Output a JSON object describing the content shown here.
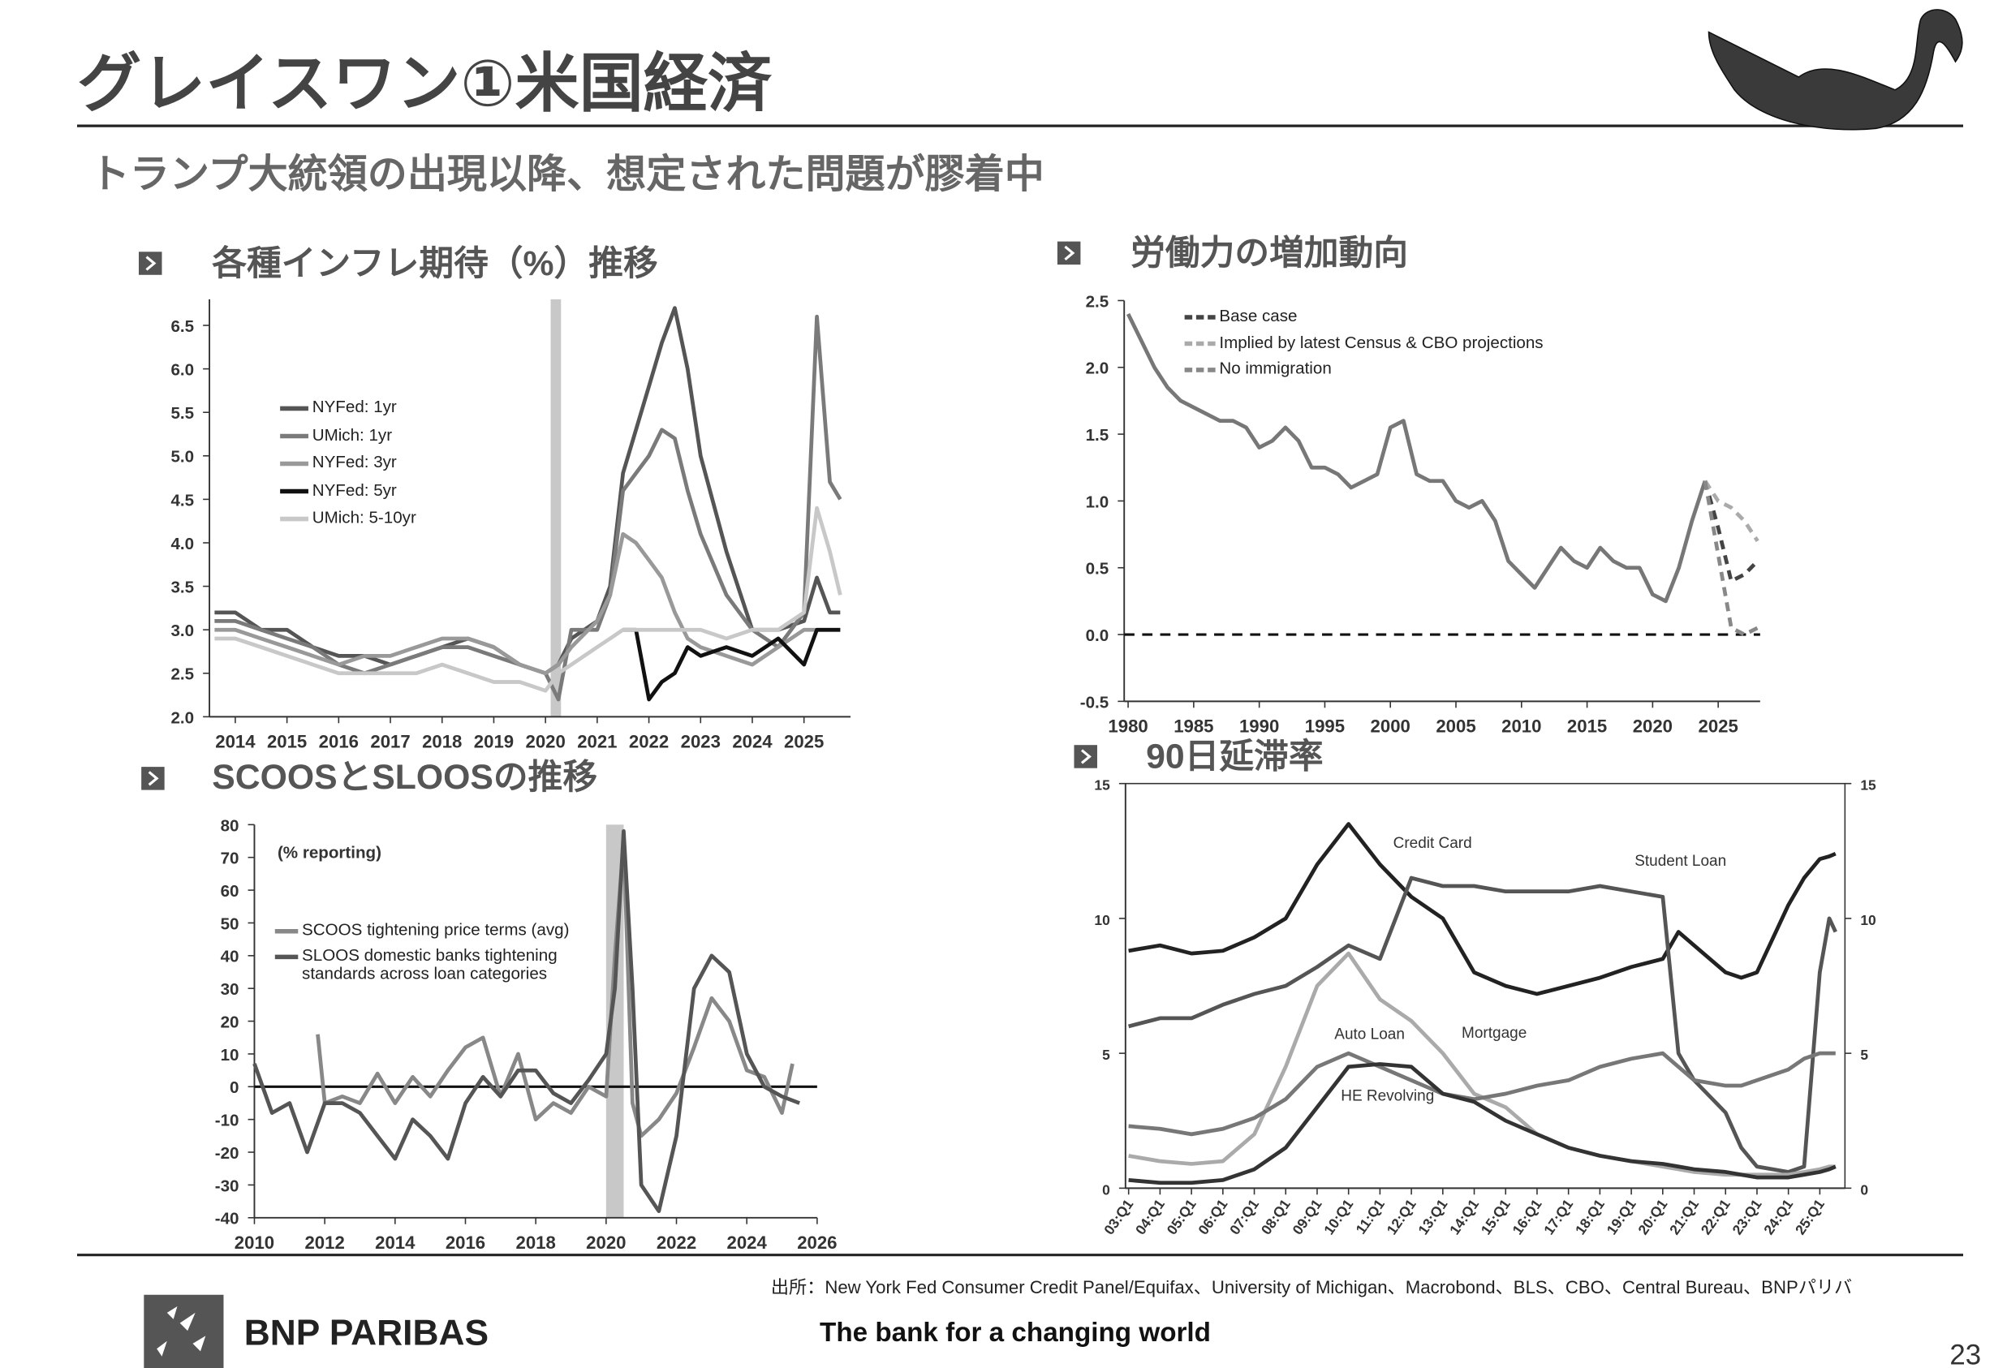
{
  "page_title": "グレイスワン①米国経済",
  "subtitle": "トランプ大統領の出現以降、想定された問題が膠着中",
  "source": "出所：New York Fed Consumer Credit Panel/Equifax、University of Michigan、Macrobond、BLS、CBO、Central Bureau、BNPパリバ",
  "logo": "BNP PARIBAS",
  "tagline": "The bank for a changing world",
  "page_number": "23",
  "chart_data": [
    {
      "type": "line",
      "title": "各種インフレ期待（%）推移",
      "legend": "upper left",
      "xlim": [
        2013.5,
        2025.9
      ],
      "xticks": [
        2014,
        2015,
        2016,
        2017,
        2018,
        2019,
        2020,
        2021,
        2022,
        2023,
        2024,
        2025
      ],
      "ylim": [
        2,
        6.8
      ],
      "yticks": [
        {
          "value": 2,
          "label": "2.0"
        },
        2.5,
        {
          "value": 3,
          "label": "3.0"
        },
        3.5,
        {
          "value": 4,
          "label": "4.0"
        },
        4.5,
        {
          "value": 5,
          "label": "5.0"
        },
        5.5,
        {
          "value": 6,
          "label": "6.0"
        },
        6.5
      ],
      "shade_x": [
        2020.1,
        2020.3
      ],
      "x": [
        2013.6,
        2014,
        2014.5,
        2015,
        2015.5,
        2016,
        2016.5,
        2017,
        2017.5,
        2018,
        2018.5,
        2019,
        2019.5,
        2020,
        2020.25,
        2020.5,
        2021,
        2021.25,
        2021.5,
        2021.75,
        2022,
        2022.25,
        2022.5,
        2022.75,
        2023,
        2023.5,
        2024,
        2024.5,
        2025,
        2025.25,
        2025.5,
        2025.7
      ],
      "series": [
        {
          "name": "NYFed: 1yr",
          "color": "#555555",
          "values": [
            3.2,
            3.2,
            3.0,
            3.0,
            2.8,
            2.7,
            2.7,
            2.6,
            2.7,
            2.8,
            2.9,
            2.8,
            2.6,
            2.5,
            2.6,
            2.9,
            3.1,
            3.5,
            4.8,
            5.3,
            5.8,
            6.3,
            6.7,
            6.0,
            5.0,
            3.9,
            3.0,
            3.0,
            3.1,
            3.6,
            3.2,
            3.2
          ]
        },
        {
          "name": "UMich: 1yr",
          "color": "#7a7a7a",
          "values": [
            3.1,
            3.1,
            3.0,
            2.9,
            2.8,
            2.6,
            2.5,
            2.6,
            2.7,
            2.8,
            2.8,
            2.7,
            2.6,
            2.5,
            2.2,
            3.0,
            3.0,
            3.4,
            4.6,
            4.8,
            5.0,
            5.3,
            5.2,
            4.6,
            4.1,
            3.4,
            3.0,
            2.8,
            3.2,
            6.6,
            4.7,
            4.5
          ]
        },
        {
          "name": "NYFed: 3yr",
          "color": "#999999",
          "values": [
            3.0,
            3.0,
            2.9,
            2.8,
            2.7,
            2.6,
            2.7,
            2.7,
            2.8,
            2.9,
            2.9,
            2.8,
            2.6,
            2.5,
            2.6,
            2.8,
            3.1,
            3.4,
            4.1,
            4.0,
            3.8,
            3.6,
            3.2,
            2.9,
            2.8,
            2.7,
            2.6,
            2.8,
            3.0,
            3.0,
            3.0,
            3.0
          ]
        },
        {
          "name": "NYFed: 5yr",
          "color": "#111111",
          "values": [
            null,
            null,
            null,
            null,
            null,
            null,
            null,
            null,
            null,
            null,
            null,
            null,
            null,
            null,
            null,
            null,
            null,
            null,
            3.0,
            3.0,
            2.2,
            2.4,
            2.5,
            2.8,
            2.7,
            2.8,
            2.7,
            2.9,
            2.6,
            3.0,
            3.0,
            3.0
          ]
        },
        {
          "name": "UMich: 5-10yr",
          "color": "#c8c8c8",
          "values": [
            2.9,
            2.9,
            2.8,
            2.7,
            2.6,
            2.5,
            2.5,
            2.5,
            2.5,
            2.6,
            2.5,
            2.4,
            2.4,
            2.3,
            2.5,
            2.6,
            2.8,
            2.9,
            3.0,
            3.0,
            3.0,
            3.0,
            3.0,
            3.0,
            3.0,
            2.9,
            3.0,
            3.0,
            3.2,
            4.4,
            3.9,
            3.4
          ]
        }
      ]
    },
    {
      "type": "line",
      "title": "労働力の増加動向",
      "legend": "upper left",
      "xlim": [
        1979.7,
        2028.2
      ],
      "xticks": [
        1980,
        1985,
        1990,
        1995,
        2000,
        2005,
        2010,
        2015,
        2020,
        2025
      ],
      "ylim": [
        -0.5,
        2.5
      ],
      "yticks": [
        -0.5,
        {
          "value": 0,
          "label": "0.0"
        },
        0.5,
        {
          "value": 1,
          "label": "1.0"
        },
        1.5,
        {
          "value": 2,
          "label": "2.0"
        },
        2.5
      ],
      "hline": 0,
      "hline_style": "dashed",
      "x": [
        1980,
        1981,
        1982,
        1983,
        1984,
        1985,
        1986,
        1987,
        1988,
        1989,
        1990,
        1991,
        1992,
        1993,
        1994,
        1995,
        1996,
        1997,
        1998,
        1999,
        2000,
        2001,
        2002,
        2003,
        2004,
        2005,
        2006,
        2007,
        2008,
        2009,
        2010,
        2011,
        2012,
        2013,
        2014,
        2015,
        2016,
        2017,
        2018,
        2019,
        2020,
        2021,
        2022,
        2023,
        2024
      ],
      "series": [
        {
          "color": "#777777",
          "values": [
            2.4,
            2.2,
            2.0,
            1.85,
            1.75,
            1.7,
            1.65,
            1.6,
            1.6,
            1.55,
            1.4,
            1.45,
            1.55,
            1.45,
            1.25,
            1.25,
            1.2,
            1.1,
            1.15,
            1.2,
            1.55,
            1.6,
            1.2,
            1.15,
            1.15,
            1.0,
            0.95,
            1.0,
            0.85,
            0.55,
            0.45,
            0.35,
            0.5,
            0.65,
            0.55,
            0.5,
            0.65,
            0.55,
            0.5,
            0.5,
            0.3,
            0.25,
            0.5,
            0.85,
            1.15
          ]
        },
        {
          "name": "Base case",
          "color": "#444444",
          "style": "dashed",
          "x": [
            2024,
            2025,
            2026,
            2027,
            2028
          ],
          "values": [
            1.15,
            0.8,
            0.4,
            0.45,
            0.55
          ]
        },
        {
          "name": "Implied by latest Census & CBO projections",
          "color": "#aaaaaa",
          "style": "dashed",
          "x": [
            2024,
            2025,
            2026,
            2027,
            2028
          ],
          "values": [
            1.15,
            1.0,
            0.95,
            0.85,
            0.7
          ]
        },
        {
          "name": "No immigration",
          "color": "#888888",
          "style": "dashed",
          "x": [
            2024,
            2025,
            2026,
            2027,
            2028
          ],
          "values": [
            1.15,
            0.6,
            0.05,
            0.0,
            0.05
          ]
        }
      ]
    },
    {
      "type": "line",
      "title": "SCOOSとSLOOSの推移",
      "legend": "center left",
      "annotation": "(% reporting)",
      "xlim": [
        2010,
        2026
      ],
      "xticks": [
        2010,
        2012,
        2014,
        2016,
        2018,
        2020,
        2022,
        2024,
        2026
      ],
      "ylim": [
        -40,
        80
      ],
      "yticks": [
        -40,
        -30,
        -20,
        -10,
        0,
        10,
        20,
        30,
        40,
        50,
        60,
        70,
        80
      ],
      "hline": 0,
      "hline_style": "solid",
      "shade_x": [
        2020,
        2020.5
      ],
      "series": [
        {
          "name": "SCOOS tightening price terms (avg)",
          "color": "#888888",
          "x": [
            2011.8,
            2012,
            2012.5,
            2013,
            2013.5,
            2014,
            2014.5,
            2015,
            2015.5,
            2016,
            2016.5,
            2017,
            2017.5,
            2018,
            2018.5,
            2019,
            2019.5,
            2020,
            2020.25,
            2020.5,
            2020.75,
            2021,
            2021.5,
            2022,
            2022.5,
            2023,
            2023.5,
            2024,
            2024.5,
            2025,
            2025.3
          ],
          "values": [
            16,
            -5,
            -3,
            -5,
            4,
            -5,
            3,
            -3,
            5,
            12,
            15,
            -3,
            10,
            -10,
            -5,
            -8,
            0,
            -3,
            40,
            75,
            -5,
            -15,
            -10,
            -2,
            12,
            27,
            20,
            5,
            3,
            -8,
            7
          ]
        },
        {
          "name": "SLOOS domestic banks tightening standards across loan categories",
          "color": "#555555",
          "x": [
            2010,
            2010.5,
            2011,
            2011.5,
            2012,
            2012.5,
            2013,
            2013.5,
            2014,
            2014.5,
            2015,
            2015.5,
            2016,
            2016.5,
            2017,
            2017.5,
            2018,
            2018.5,
            2019,
            2019.5,
            2020,
            2020.25,
            2020.5,
            2020.75,
            2021,
            2021.5,
            2022,
            2022.5,
            2023,
            2023.5,
            2024,
            2024.5,
            2025,
            2025.5
          ],
          "values": [
            7,
            -8,
            -5,
            -20,
            -5,
            -5,
            -8,
            -15,
            -22,
            -10,
            -15,
            -22,
            -5,
            3,
            -3,
            5,
            5,
            -2,
            -5,
            2,
            10,
            30,
            78,
            30,
            -30,
            -38,
            -15,
            30,
            40,
            35,
            10,
            0,
            -3,
            -5
          ]
        }
      ]
    },
    {
      "type": "line",
      "title": "90日延滞率",
      "legend": "inline",
      "xlim": [
        2002.9,
        2025.8
      ],
      "xticks": [
        {
          "value": 2003,
          "label": "03:Q1"
        },
        {
          "value": 2004,
          "label": "04:Q1"
        },
        {
          "value": 2005,
          "label": "05:Q1"
        },
        {
          "value": 2006,
          "label": "06:Q1"
        },
        {
          "value": 2007,
          "label": "07:Q1"
        },
        {
          "value": 2008,
          "label": "08:Q1"
        },
        {
          "value": 2009,
          "label": "09:Q1"
        },
        {
          "value": 2010,
          "label": "10:Q1"
        },
        {
          "value": 2011,
          "label": "11:Q1"
        },
        {
          "value": 2012,
          "label": "12:Q1"
        },
        {
          "value": 2013,
          "label": "13:Q1"
        },
        {
          "value": 2014,
          "label": "14:Q1"
        },
        {
          "value": 2015,
          "label": "15:Q1"
        },
        {
          "value": 2016,
          "label": "16:Q1"
        },
        {
          "value": 2017,
          "label": "17:Q1"
        },
        {
          "value": 2018,
          "label": "18:Q1"
        },
        {
          "value": 2019,
          "label": "19:Q1"
        },
        {
          "value": 2020,
          "label": "20:Q1"
        },
        {
          "value": 2021,
          "label": "21:Q1"
        },
        {
          "value": 2022,
          "label": "22:Q1"
        },
        {
          "value": 2023,
          "label": "23:Q1"
        },
        {
          "value": 2024,
          "label": "24:Q1"
        },
        {
          "value": 2025,
          "label": "25:Q1"
        }
      ],
      "ylim": [
        0,
        15
      ],
      "yticks": [
        0,
        5,
        10,
        15
      ],
      "y2lim": [
        0,
        15
      ],
      "y2ticks": [
        0,
        5,
        10,
        15
      ],
      "x": [
        2003,
        2004,
        2005,
        2006,
        2007,
        2008,
        2009,
        2010,
        2011,
        2012,
        2013,
        2014,
        2015,
        2016,
        2017,
        2018,
        2019,
        2020,
        2020.5,
        2021,
        2022,
        2022.5,
        2023,
        2024,
        2024.5,
        2025,
        2025.3,
        2025.5
      ],
      "series": [
        {
          "name": "Credit Card",
          "color": "#222222",
          "values": [
            8.8,
            9.0,
            8.7,
            8.8,
            9.3,
            10.0,
            12.0,
            13.5,
            12.0,
            10.8,
            10.0,
            8.0,
            7.5,
            7.2,
            7.5,
            7.8,
            8.2,
            8.5,
            9.5,
            9.0,
            8.0,
            7.8,
            8.0,
            10.5,
            11.5,
            12.2,
            12.3,
            12.4
          ]
        },
        {
          "name": "Student Loan",
          "color": "#555555",
          "values": [
            6.0,
            6.3,
            6.3,
            6.8,
            7.2,
            7.5,
            8.2,
            9.0,
            8.5,
            11.5,
            11.2,
            11.2,
            11.0,
            11.0,
            11.0,
            11.2,
            11.0,
            10.8,
            5.0,
            4.0,
            2.8,
            1.5,
            0.8,
            0.6,
            0.8,
            8.0,
            10.0,
            9.5
          ]
        },
        {
          "name": "Mortgage",
          "color": "#aaaaaa",
          "values": [
            1.2,
            1.0,
            0.9,
            1.0,
            2.0,
            4.5,
            7.5,
            8.7,
            7.0,
            6.2,
            5.0,
            3.5,
            3.0,
            2.0,
            1.5,
            1.2,
            1.0,
            0.8,
            0.7,
            0.6,
            0.5,
            0.5,
            0.5,
            0.5,
            0.6,
            0.7,
            0.8,
            0.8
          ]
        },
        {
          "name": "Auto Loan",
          "color": "#777777",
          "values": [
            2.3,
            2.2,
            2.0,
            2.2,
            2.6,
            3.3,
            4.5,
            5.0,
            4.5,
            4.0,
            3.5,
            3.3,
            3.5,
            3.8,
            4.0,
            4.5,
            4.8,
            5.0,
            4.5,
            4.0,
            3.8,
            3.8,
            4.0,
            4.4,
            4.8,
            5.0,
            5.0,
            5.0
          ]
        },
        {
          "name": "HE Revolving",
          "color": "#333333",
          "values": [
            0.3,
            0.2,
            0.2,
            0.3,
            0.7,
            1.5,
            3.0,
            4.5,
            4.6,
            4.5,
            3.5,
            3.2,
            2.5,
            2.0,
            1.5,
            1.2,
            1.0,
            0.9,
            0.8,
            0.7,
            0.6,
            0.5,
            0.4,
            0.4,
            0.5,
            0.6,
            0.7,
            0.8
          ]
        }
      ]
    }
  ]
}
